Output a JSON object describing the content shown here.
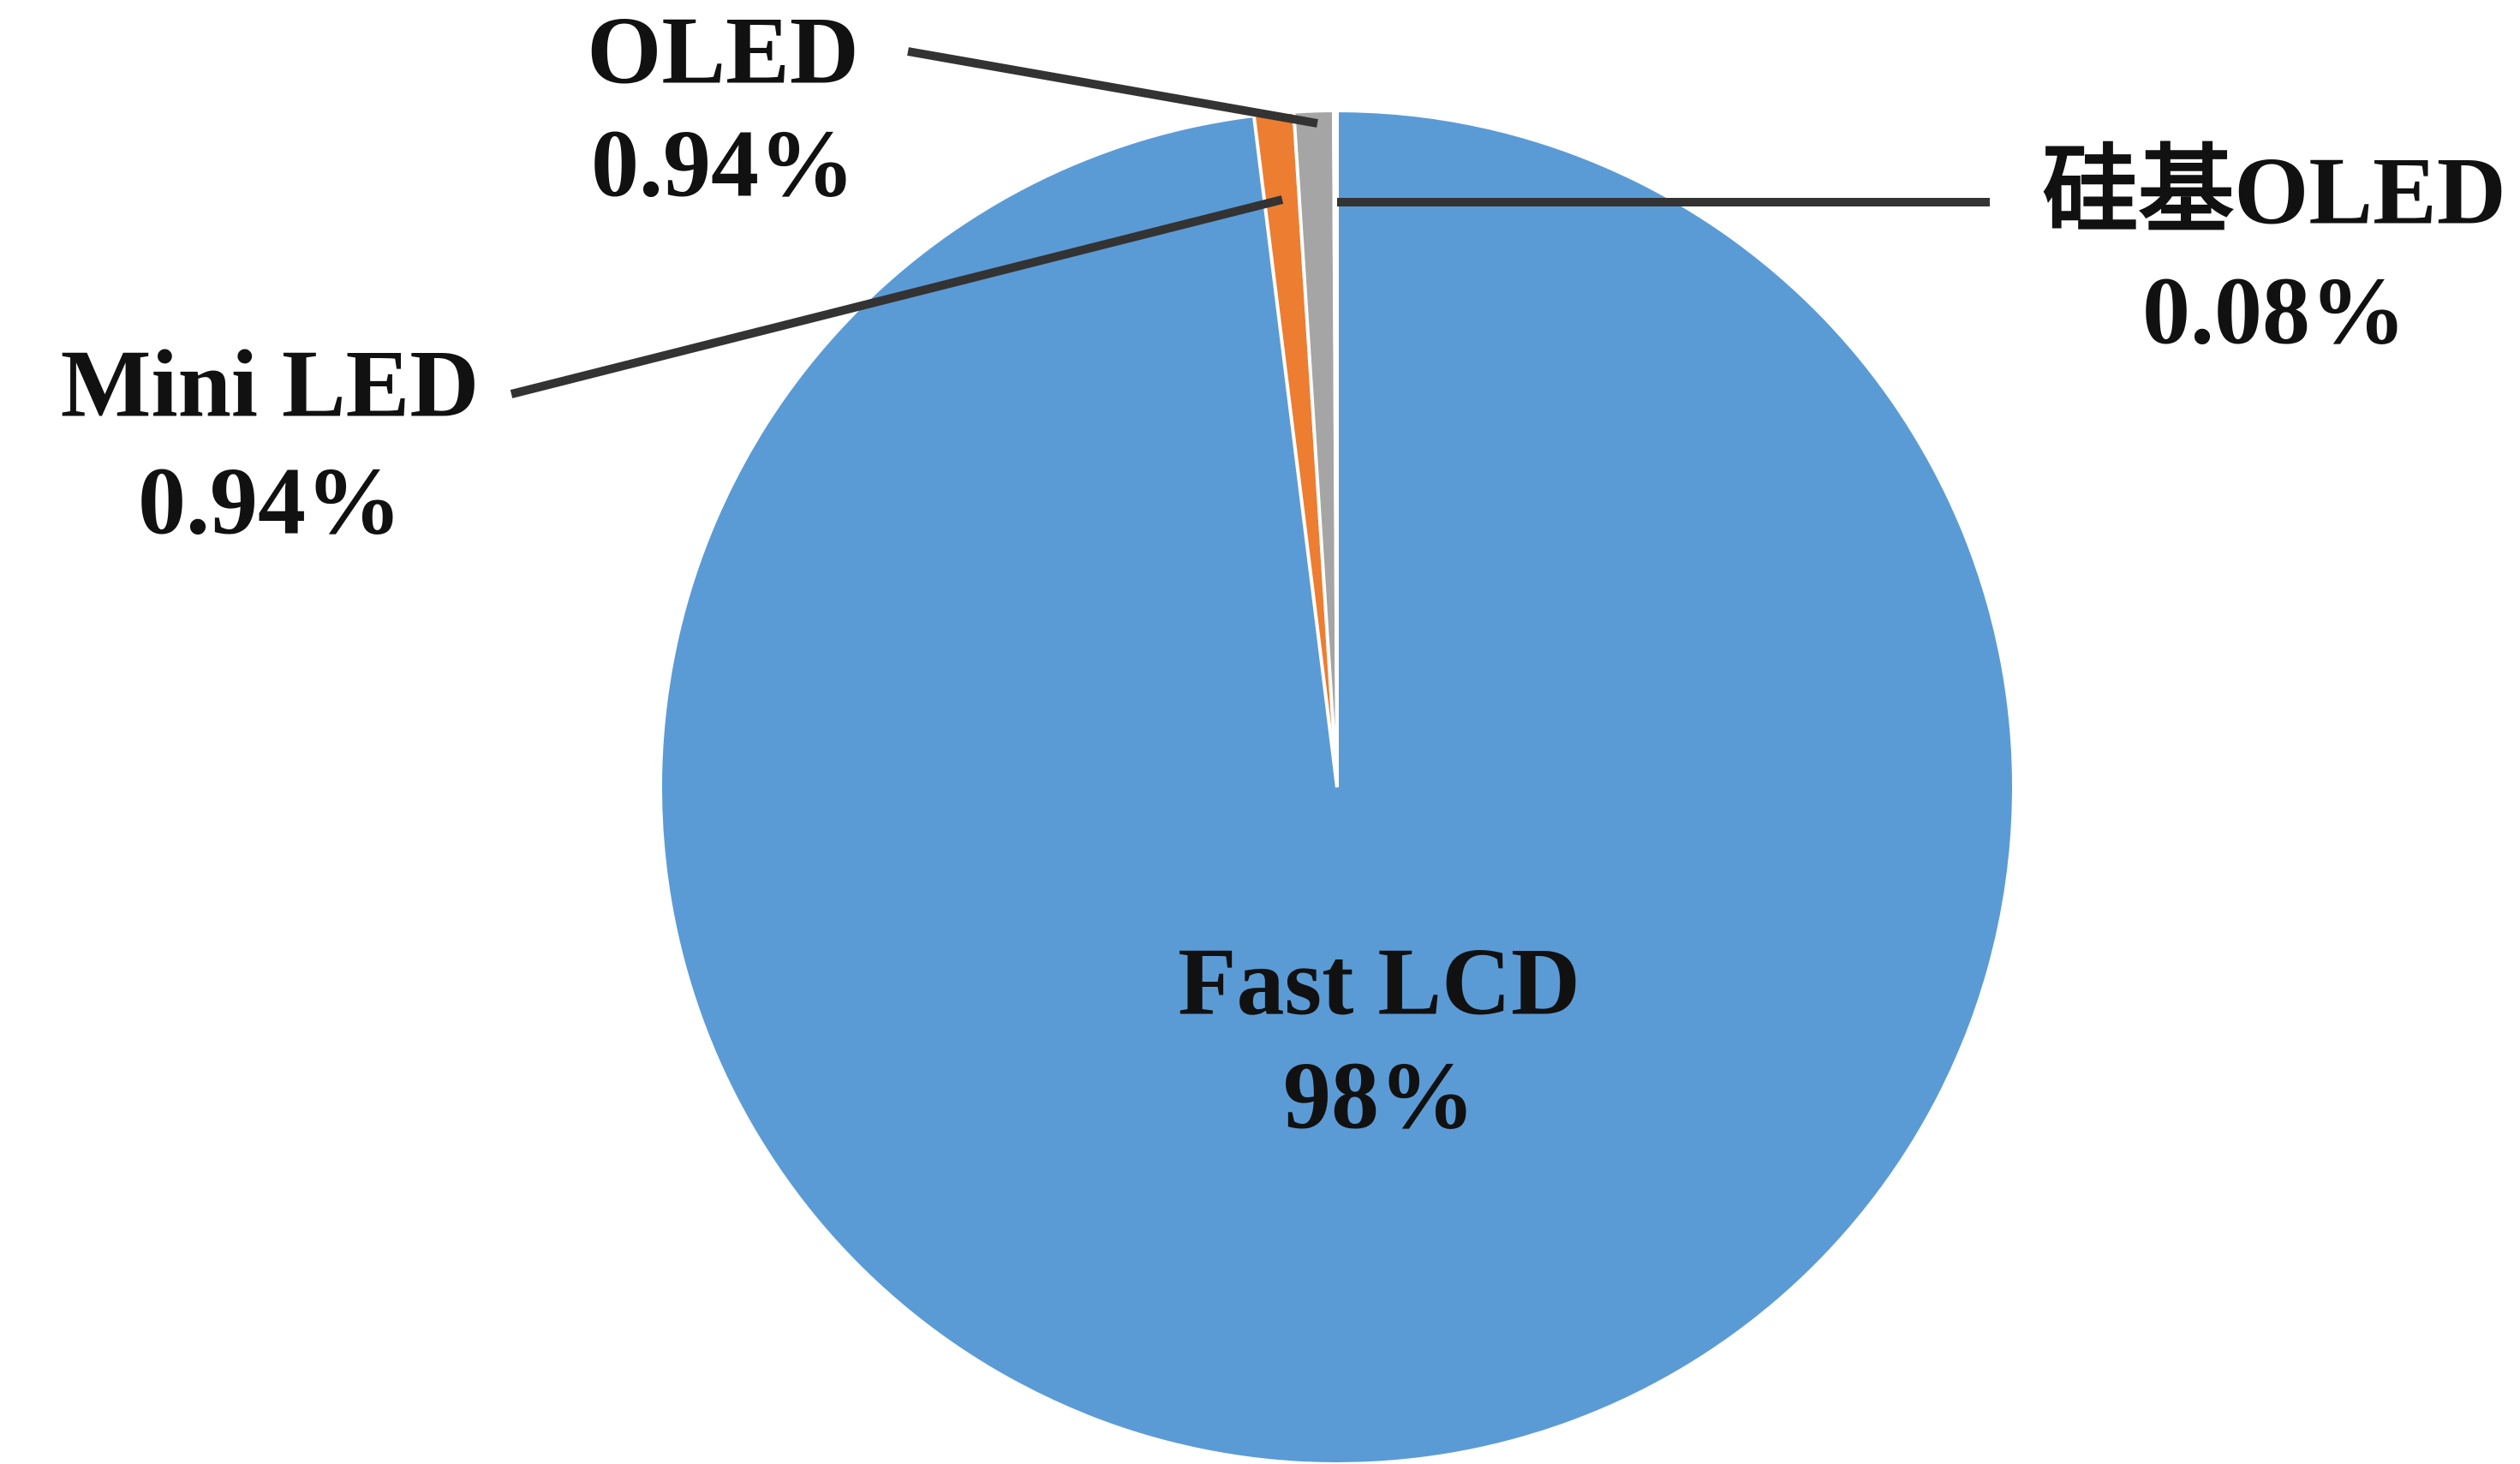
{
  "chart_data": {
    "type": "pie",
    "categories": [
      "Fast LCD",
      "Mini LED",
      "OLED",
      "硅基OLED"
    ],
    "values": [
      98,
      0.94,
      0.94,
      0.08
    ],
    "value_labels": [
      "98%",
      "0.94%",
      "0.94%",
      "0.08%"
    ],
    "colors": [
      "#5b9bd5",
      "#ed7d31",
      "#a5a5a5",
      "#ffc000"
    ]
  }
}
